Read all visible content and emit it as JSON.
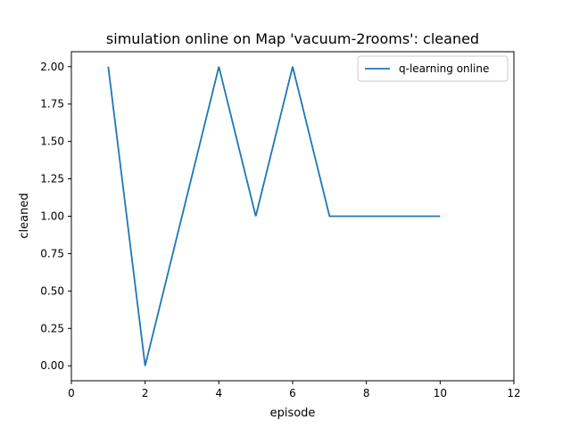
{
  "chart_data": {
    "type": "line",
    "title": "simulation online on Map 'vacuum-2rooms': cleaned",
    "xlabel": "episode",
    "ylabel": "cleaned",
    "xlim": [
      0,
      12
    ],
    "ylim": [
      -0.1,
      2.1
    ],
    "xticks": [
      "0",
      "2",
      "4",
      "6",
      "8",
      "10",
      "12"
    ],
    "yticks": [
      "0.00",
      "0.25",
      "0.50",
      "0.75",
      "1.00",
      "1.25",
      "1.50",
      "1.75",
      "2.00"
    ],
    "grid": false,
    "legend_position": "top-right",
    "series": [
      {
        "name": "q-learning online",
        "color": "#1f77b4",
        "x": [
          1,
          2,
          3,
          4,
          5,
          6,
          7,
          8,
          9,
          10
        ],
        "y": [
          2,
          0,
          1,
          2,
          1,
          2,
          1,
          1,
          1,
          1
        ]
      }
    ]
  }
}
